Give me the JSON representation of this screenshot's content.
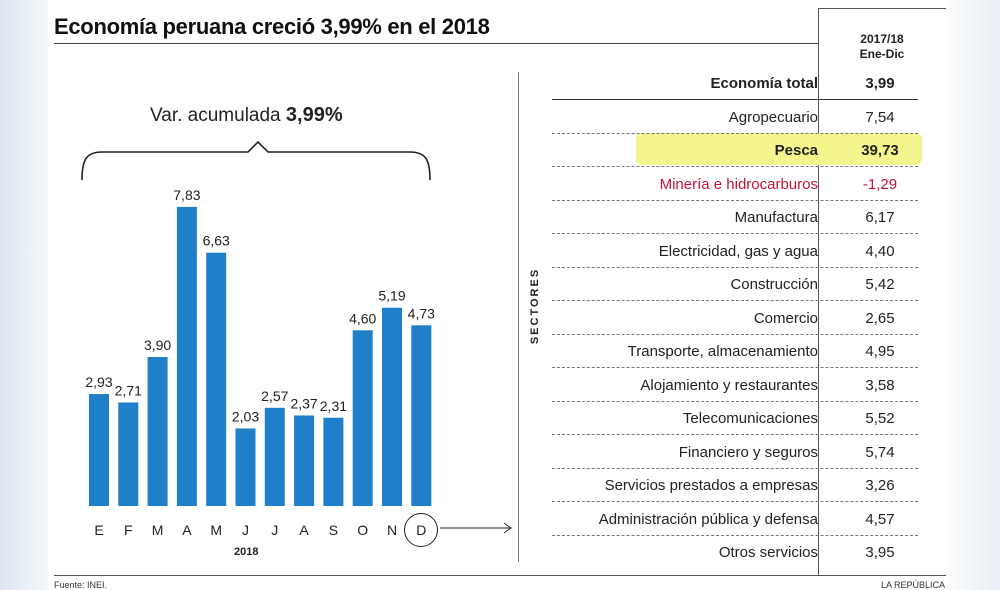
{
  "title": "Economía peruana creció 3,99% en el 2018",
  "column_header_line1": "2017/18",
  "column_header_line2": "Ene-Dic",
  "var_label_prefix": "Var. acumulada",
  "var_label_value": "3,99%",
  "year_label": "2018",
  "sectores_label": "SECTORES",
  "footer_source": "Fuente: INEI.",
  "footer_brand": "LA REPÚBLICA",
  "colors": {
    "bar": "#1f7fc9",
    "highlight": "#f5f58e",
    "negative": "#c0143c"
  },
  "chart_data": [
    {
      "type": "bar",
      "title": "Var. acumulada 3,99%",
      "xlabel": "2018",
      "categories": [
        "E",
        "F",
        "M",
        "A",
        "M",
        "J",
        "J",
        "A",
        "S",
        "O",
        "N",
        "D"
      ],
      "values": [
        2.93,
        2.71,
        3.9,
        7.83,
        6.63,
        2.03,
        2.57,
        2.37,
        2.31,
        4.6,
        5.19,
        4.73
      ],
      "value_labels": [
        "2,93",
        "2,71",
        "3,90",
        "7,83",
        "6,63",
        "2,03",
        "2,57",
        "2,37",
        "2,31",
        "4,60",
        "5,19",
        "4,73"
      ],
      "ylim": [
        0,
        8
      ]
    },
    {
      "type": "table",
      "columns": [
        "Sectores",
        "2017/18 Ene-Dic"
      ],
      "rows": [
        {
          "sector": "Economía total",
          "value": "3,99",
          "style": "bold"
        },
        {
          "sector": "Agropecuario",
          "value": "7,54",
          "style": ""
        },
        {
          "sector": "Pesca",
          "value": "39,73",
          "style": "bold highlight"
        },
        {
          "sector": "Minería e hidrocarburos",
          "value": "-1,29",
          "style": "red"
        },
        {
          "sector": "Manufactura",
          "value": "6,17",
          "style": ""
        },
        {
          "sector": "Electricidad, gas y agua",
          "value": "4,40",
          "style": ""
        },
        {
          "sector": "Construcción",
          "value": "5,42",
          "style": ""
        },
        {
          "sector": "Comercio",
          "value": "2,65",
          "style": ""
        },
        {
          "sector": "Transporte, almacenamiento",
          "value": "4,95",
          "style": ""
        },
        {
          "sector": "Alojamiento y restaurantes",
          "value": "3,58",
          "style": ""
        },
        {
          "sector": "Telecomunicaciones",
          "value": "5,52",
          "style": ""
        },
        {
          "sector": "Financiero y seguros",
          "value": "5,74",
          "style": ""
        },
        {
          "sector": "Servicios prestados a empresas",
          "value": "3,26",
          "style": ""
        },
        {
          "sector": "Administración pública y defensa",
          "value": "4,57",
          "style": ""
        },
        {
          "sector": "Otros servicios",
          "value": "3,95",
          "style": ""
        }
      ]
    }
  ]
}
